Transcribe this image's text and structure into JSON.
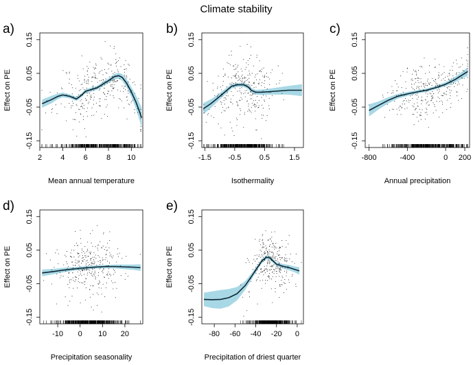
{
  "figure_title": "Climate stability",
  "chart_data": [
    {
      "type": "line",
      "panel": "a)",
      "xlabel": "Mean annual temperature",
      "ylabel": "Effect on PE",
      "xlim": [
        2,
        11
      ],
      "ylim": [
        -0.17,
        0.17
      ],
      "xticks": [
        2,
        4,
        6,
        8,
        10
      ],
      "xtick_labels": [
        "2",
        "4",
        "6",
        "8",
        "10"
      ],
      "yticks": [
        -0.15,
        -0.05,
        0.05,
        0.15
      ],
      "ytick_labels": [
        "-0.15",
        "-0.05",
        "0.05",
        "0.15"
      ],
      "fit": {
        "x": [
          2.2,
          3,
          3.6,
          4,
          4.6,
          5.2,
          5.6,
          6,
          6.5,
          7,
          7.6,
          8,
          8.5,
          8.9,
          9.2,
          9.6,
          10,
          10.4,
          10.7,
          10.9
        ],
        "y": [
          -0.04,
          -0.028,
          -0.018,
          -0.014,
          -0.018,
          -0.026,
          -0.016,
          -0.003,
          0.002,
          0.007,
          0.02,
          0.028,
          0.04,
          0.043,
          0.038,
          0.02,
          -0.005,
          -0.035,
          -0.062,
          -0.082
        ],
        "ci_width": [
          0.012,
          0.011,
          0.008,
          0.007,
          0.006,
          0.006,
          0.006,
          0.006,
          0.006,
          0.006,
          0.007,
          0.007,
          0.008,
          0.009,
          0.01,
          0.012,
          0.015,
          0.02,
          0.025,
          0.03
        ]
      },
      "scatter": {
        "n": 320,
        "x_center": 7.3,
        "x_spread": 1.9,
        "y_noise": 0.045,
        "seed": 11
      }
    },
    {
      "type": "line",
      "panel": "b)",
      "xlabel": "Isothermality",
      "ylabel": "Effect on PE",
      "xlim": [
        -1.6,
        1.8
      ],
      "ylim": [
        -0.17,
        0.17
      ],
      "xticks": [
        -1.5,
        -0.5,
        0.5,
        1.5
      ],
      "xtick_labels": [
        "-1.5",
        "-0.5",
        "0.5",
        "1.5"
      ],
      "yticks": [
        -0.15,
        -0.05,
        0.05,
        0.15
      ],
      "ytick_labels": [
        "-0.15",
        "-0.05",
        "0.05",
        "0.15"
      ],
      "fit": {
        "x": [
          -1.55,
          -1.3,
          -1.05,
          -0.8,
          -0.6,
          -0.4,
          -0.2,
          -0.05,
          0.05,
          0.2,
          0.4,
          0.7,
          1.0,
          1.3,
          1.6,
          1.75
        ],
        "y": [
          -0.055,
          -0.04,
          -0.022,
          -0.003,
          0.012,
          0.016,
          0.016,
          0.01,
          0.0,
          -0.006,
          -0.006,
          -0.004,
          -0.002,
          0.0,
          0.0,
          0.0
        ],
        "ci_width": [
          0.017,
          0.013,
          0.01,
          0.008,
          0.007,
          0.006,
          0.006,
          0.007,
          0.007,
          0.007,
          0.008,
          0.009,
          0.011,
          0.013,
          0.016,
          0.018
        ]
      },
      "scatter": {
        "n": 300,
        "x_center": -0.25,
        "x_spread": 0.55,
        "y_noise": 0.05,
        "seed": 23
      }
    },
    {
      "type": "line",
      "panel": "c)",
      "xlabel": "Annual precipitation",
      "ylabel": "Effect on PE",
      "xlim": [
        -840,
        250
      ],
      "ylim": [
        -0.17,
        0.17
      ],
      "xticks": [
        -800,
        -400,
        0,
        200
      ],
      "xtick_labels": [
        "-800",
        "-400",
        "0",
        "200"
      ],
      "yticks": [
        -0.15,
        -0.05,
        0.05,
        0.15
      ],
      "ytick_labels": [
        "-0.15",
        "-0.05",
        "0.05",
        "0.15"
      ],
      "fit": {
        "x": [
          -800,
          -700,
          -600,
          -500,
          -400,
          -300,
          -200,
          -100,
          0,
          100,
          200,
          230
        ],
        "y": [
          -0.06,
          -0.045,
          -0.03,
          -0.018,
          -0.011,
          -0.005,
          0.0,
          0.008,
          0.018,
          0.032,
          0.05,
          0.055
        ],
        "ci_width": [
          0.018,
          0.012,
          0.009,
          0.007,
          0.006,
          0.005,
          0.005,
          0.005,
          0.006,
          0.008,
          0.011,
          0.013
        ]
      },
      "scatter": {
        "n": 320,
        "x_center": -180,
        "x_spread": 200,
        "y_noise": 0.04,
        "seed": 37
      }
    },
    {
      "type": "line",
      "panel": "d)",
      "xlabel": "Precipitation seasonality",
      "ylabel": "Effect on PE",
      "xlim": [
        -18,
        28
      ],
      "ylim": [
        -0.17,
        0.17
      ],
      "xticks": [
        -10,
        0,
        10,
        20
      ],
      "xtick_labels": [
        "-10",
        "0",
        "10",
        "20"
      ],
      "yticks": [
        -0.15,
        -0.05,
        0.05,
        0.15
      ],
      "ytick_labels": [
        "-0.15",
        "-0.05",
        "0.05",
        "0.15"
      ],
      "fit": {
        "x": [
          -17,
          -12,
          -8,
          -4,
          0,
          4,
          8,
          12,
          16,
          20,
          24,
          27
        ],
        "y": [
          -0.018,
          -0.014,
          -0.01,
          -0.007,
          -0.004,
          -0.002,
          0.0,
          0.001,
          0.001,
          0.0,
          -0.001,
          -0.002
        ],
        "ci_width": [
          0.01,
          0.008,
          0.007,
          0.006,
          0.005,
          0.005,
          0.005,
          0.005,
          0.006,
          0.007,
          0.008,
          0.01
        ]
      },
      "scatter": {
        "n": 330,
        "x_center": 5,
        "x_spread": 8,
        "y_noise": 0.045,
        "seed": 53
      }
    },
    {
      "type": "line",
      "panel": "e)",
      "xlabel": "Precipitation of driest quarter",
      "ylabel": "Effect on PE",
      "xlim": [
        -92,
        6
      ],
      "ylim": [
        -0.17,
        0.17
      ],
      "xticks": [
        -80,
        -60,
        -40,
        -20,
        0
      ],
      "xtick_labels": [
        "-80",
        "-60",
        "-40",
        "-20",
        "0"
      ],
      "yticks": [
        -0.15,
        -0.05,
        0.05,
        0.15
      ],
      "ytick_labels": [
        "-0.15",
        "-0.05",
        "0.05",
        "0.15"
      ],
      "fit": {
        "x": [
          -90,
          -82,
          -74,
          -66,
          -58,
          -50,
          -44,
          -38,
          -34,
          -30,
          -27,
          -24,
          -20,
          -14,
          -8,
          -2,
          2
        ],
        "y": [
          -0.097,
          -0.098,
          -0.097,
          -0.092,
          -0.08,
          -0.055,
          -0.028,
          0.0,
          0.018,
          0.028,
          0.028,
          0.02,
          0.008,
          0.002,
          -0.002,
          -0.008,
          -0.012
        ],
        "ci_width": [
          0.02,
          0.025,
          0.028,
          0.026,
          0.02,
          0.013,
          0.009,
          0.007,
          0.006,
          0.006,
          0.006,
          0.006,
          0.006,
          0.007,
          0.008,
          0.009,
          0.011
        ]
      },
      "scatter": {
        "n": 310,
        "x_center": -25,
        "x_spread": 11,
        "y_noise": 0.04,
        "seed": 71
      }
    }
  ]
}
